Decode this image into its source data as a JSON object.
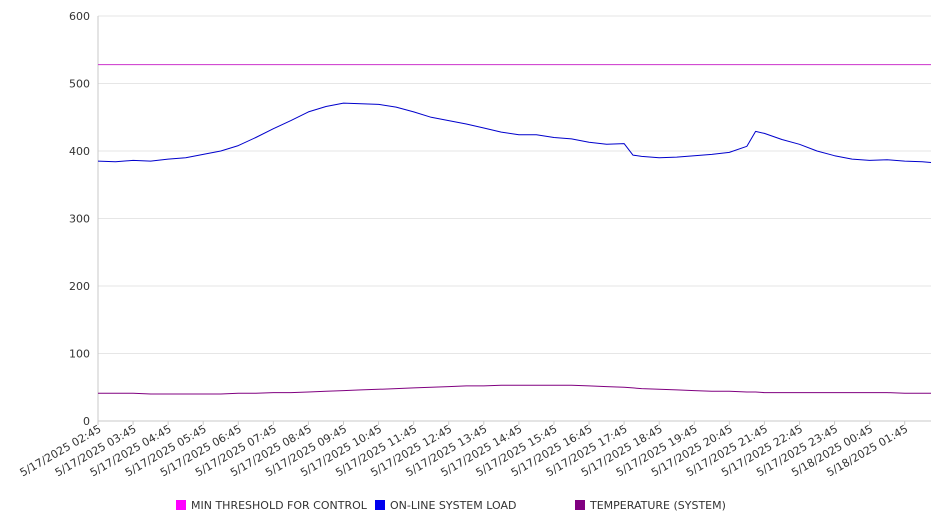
{
  "chart_data": {
    "type": "line",
    "title": "",
    "xlabel": "",
    "ylabel": "",
    "ylim": [
      0,
      600
    ],
    "y_ticks": [
      "0",
      "100",
      "200",
      "300",
      "400",
      "500",
      "600"
    ],
    "grid": true,
    "legend_position": "bottom",
    "x_tick_labels": [
      "5/17/2025 02:45",
      "5/17/2025 03:45",
      "5/17/2025 04:45",
      "5/17/2025 05:45",
      "5/17/2025 06:45",
      "5/17/2025 07:45",
      "5/17/2025 08:45",
      "5/17/2025 09:45",
      "5/17/2025 10:45",
      "5/17/2025 11:45",
      "5/17/2025 12:45",
      "5/17/2025 13:45",
      "5/17/2025 14:45",
      "5/17/2025 15:45",
      "5/17/2025 16:45",
      "5/17/2025 17:45",
      "5/17/2025 18:45",
      "5/17/2025 19:45",
      "5/17/2025 20:45",
      "5/17/2025 21:45",
      "5/17/2025 22:45",
      "5/17/2025 23:45",
      "5/18/2025 00:45",
      "5/18/2025 01:45"
    ],
    "x": [
      "5/17/2025 02:45",
      "5/17/2025 03:15",
      "5/17/2025 03:45",
      "5/17/2025 04:15",
      "5/17/2025 04:45",
      "5/17/2025 05:15",
      "5/17/2025 05:45",
      "5/17/2025 06:15",
      "5/17/2025 06:45",
      "5/17/2025 07:15",
      "5/17/2025 07:45",
      "5/17/2025 08:15",
      "5/17/2025 08:45",
      "5/17/2025 09:15",
      "5/17/2025 09:45",
      "5/17/2025 10:15",
      "5/17/2025 10:45",
      "5/17/2025 11:15",
      "5/17/2025 11:45",
      "5/17/2025 12:15",
      "5/17/2025 12:45",
      "5/17/2025 13:15",
      "5/17/2025 13:45",
      "5/17/2025 14:15",
      "5/17/2025 14:45",
      "5/17/2025 15:15",
      "5/17/2025 15:45",
      "5/17/2025 16:15",
      "5/17/2025 16:45",
      "5/17/2025 17:15",
      "5/17/2025 17:45",
      "5/17/2025 18:00",
      "5/17/2025 18:15",
      "5/17/2025 18:45",
      "5/17/2025 19:15",
      "5/17/2025 19:45",
      "5/17/2025 20:15",
      "5/17/2025 20:45",
      "5/17/2025 21:15",
      "5/17/2025 21:30",
      "5/17/2025 21:45",
      "5/17/2025 22:15",
      "5/17/2025 22:45",
      "5/17/2025 23:15",
      "5/17/2025 23:45",
      "5/18/2025 00:15",
      "5/18/2025 00:45",
      "5/18/2025 01:15",
      "5/18/2025 01:45",
      "5/18/2025 02:15",
      "5/18/2025 02:30"
    ],
    "series": [
      {
        "name": "MIN THRESHOLD FOR CONTROL",
        "color": "#cc33cc",
        "values": [
          528,
          528,
          528,
          528,
          528,
          528,
          528,
          528,
          528,
          528,
          528,
          528,
          528,
          528,
          528,
          528,
          528,
          528,
          528,
          528,
          528,
          528,
          528,
          528,
          528,
          528,
          528,
          528,
          528,
          528,
          528,
          528,
          528,
          528,
          528,
          528,
          528,
          528,
          528,
          528,
          528,
          528,
          528,
          528,
          528,
          528,
          528,
          528,
          528,
          528,
          528
        ]
      },
      {
        "name": "ON-LINE SYSTEM LOAD",
        "color": "#0000cc",
        "values": [
          385,
          384,
          386,
          385,
          388,
          390,
          395,
          400,
          408,
          420,
          433,
          445,
          458,
          466,
          471,
          470,
          469,
          465,
          458,
          450,
          445,
          440,
          434,
          428,
          424,
          424,
          420,
          418,
          413,
          410,
          411,
          394,
          392,
          390,
          391,
          393,
          395,
          398,
          407,
          429,
          426,
          417,
          410,
          400,
          393,
          388,
          386,
          387,
          385,
          384,
          383
        ]
      },
      {
        "name": "TEMPERATURE (SYSTEM)",
        "color": "#800080",
        "values": [
          41,
          41,
          41,
          40,
          40,
          40,
          40,
          40,
          41,
          41,
          42,
          42,
          43,
          44,
          45,
          46,
          47,
          48,
          49,
          50,
          51,
          52,
          52,
          53,
          53,
          53,
          53,
          53,
          52,
          51,
          50,
          49,
          48,
          47,
          46,
          45,
          44,
          44,
          43,
          43,
          42,
          42,
          42,
          42,
          42,
          42,
          42,
          42,
          41,
          41,
          41
        ]
      }
    ]
  }
}
